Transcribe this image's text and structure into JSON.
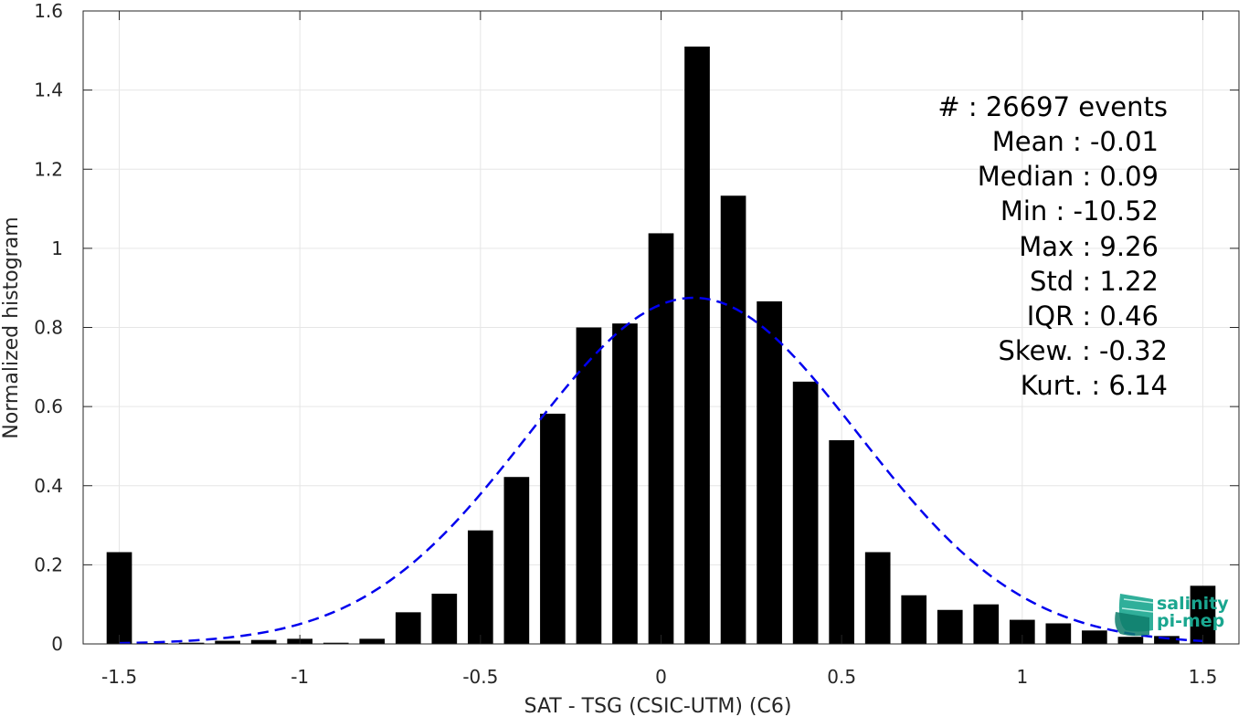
{
  "chart_data": {
    "type": "bar",
    "xlabel": "SAT - TSG (CSIC-UTM) (C6)",
    "ylabel": "Normalized histogram",
    "xlim": [
      -1.6,
      1.6
    ],
    "ylim": [
      0,
      1.6
    ],
    "xticks": [
      -1.5,
      -1,
      -0.5,
      0,
      0.5,
      1,
      1.5
    ],
    "xtick_labels": [
      "-1.5",
      "-1",
      "-0.5",
      "0",
      "0.5",
      "1",
      "1.5"
    ],
    "yticks": [
      0,
      0.2,
      0.4,
      0.6,
      0.8,
      1,
      1.2,
      1.4,
      1.6
    ],
    "ytick_labels": [
      "0",
      "0.2",
      "0.4",
      "0.6",
      "0.8",
      "1",
      "1.2",
      "1.4",
      "1.6"
    ],
    "grid": true,
    "bar_width": 0.07,
    "bar_color": "#000000",
    "bins": [
      {
        "x": -1.5,
        "y": 0.232
      },
      {
        "x": -1.4,
        "y": 0.002
      },
      {
        "x": -1.3,
        "y": 0.003
      },
      {
        "x": -1.2,
        "y": 0.008
      },
      {
        "x": -1.1,
        "y": 0.01
      },
      {
        "x": -1.0,
        "y": 0.013
      },
      {
        "x": -0.9,
        "y": 0.003
      },
      {
        "x": -0.8,
        "y": 0.013
      },
      {
        "x": -0.7,
        "y": 0.08
      },
      {
        "x": -0.6,
        "y": 0.127
      },
      {
        "x": -0.5,
        "y": 0.287
      },
      {
        "x": -0.4,
        "y": 0.422
      },
      {
        "x": -0.3,
        "y": 0.582
      },
      {
        "x": -0.2,
        "y": 0.8
      },
      {
        "x": -0.1,
        "y": 0.81
      },
      {
        "x": 0.0,
        "y": 1.038
      },
      {
        "x": 0.1,
        "y": 1.51
      },
      {
        "x": 0.2,
        "y": 1.133
      },
      {
        "x": 0.3,
        "y": 0.866
      },
      {
        "x": 0.4,
        "y": 0.663
      },
      {
        "x": 0.5,
        "y": 0.515
      },
      {
        "x": 0.6,
        "y": 0.232
      },
      {
        "x": 0.7,
        "y": 0.123
      },
      {
        "x": 0.8,
        "y": 0.086
      },
      {
        "x": 0.9,
        "y": 0.1
      },
      {
        "x": 1.0,
        "y": 0.061
      },
      {
        "x": 1.1,
        "y": 0.052
      },
      {
        "x": 1.2,
        "y": 0.034
      },
      {
        "x": 1.3,
        "y": 0.018
      },
      {
        "x": 1.4,
        "y": 0.02
      },
      {
        "x": 1.5,
        "y": 0.147
      }
    ],
    "fit_curve": {
      "style": "dashed",
      "color": "#0000ee",
      "mean": 0.09,
      "sigma": 0.456,
      "peak": 0.875,
      "x_range": [
        -1.5,
        1.5
      ]
    },
    "stats": [
      "#  : 26697 events",
      "Mean : -0.01",
      "Median : 0.09",
      "Min : -10.52",
      "Max : 9.26",
      "Std : 1.22",
      "IQR : 0.46",
      "Skew. : -0.32",
      "Kurt. : 6.14"
    ]
  },
  "logo": {
    "line1": "salinity",
    "line2": "pi-mep",
    "color": "#1aa68f"
  }
}
